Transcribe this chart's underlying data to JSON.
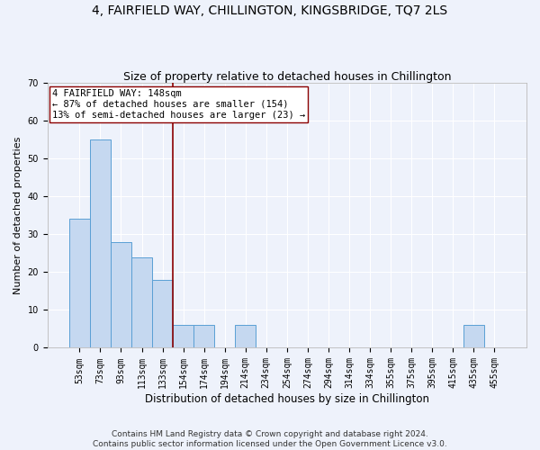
{
  "title1": "4, FAIRFIELD WAY, CHILLINGTON, KINGSBRIDGE, TQ7 2LS",
  "title2": "Size of property relative to detached houses in Chillington",
  "xlabel": "Distribution of detached houses by size in Chillington",
  "ylabel": "Number of detached properties",
  "bar_labels": [
    "53sqm",
    "73sqm",
    "93sqm",
    "113sqm",
    "133sqm",
    "154sqm",
    "174sqm",
    "194sqm",
    "214sqm",
    "234sqm",
    "254sqm",
    "274sqm",
    "294sqm",
    "314sqm",
    "334sqm",
    "355sqm",
    "375sqm",
    "395sqm",
    "415sqm",
    "435sqm",
    "455sqm"
  ],
  "bar_values": [
    34,
    55,
    28,
    24,
    18,
    6,
    6,
    0,
    6,
    0,
    0,
    0,
    0,
    0,
    0,
    0,
    0,
    0,
    0,
    6,
    0
  ],
  "bar_color": "#c5d8f0",
  "bar_edgecolor": "#5a9fd4",
  "vline_x": 4.5,
  "vline_color": "#8b0000",
  "annotation_line1": "4 FAIRFIELD WAY: 148sqm",
  "annotation_line2": "← 87% of detached houses are smaller (154)",
  "annotation_line3": "13% of semi-detached houses are larger (23) →",
  "annotation_box_color": "#ffffff",
  "annotation_box_edgecolor": "#8b0000",
  "ylim": [
    0,
    70
  ],
  "yticks": [
    0,
    10,
    20,
    30,
    40,
    50,
    60,
    70
  ],
  "footnote": "Contains HM Land Registry data © Crown copyright and database right 2024.\nContains public sector information licensed under the Open Government Licence v3.0.",
  "background_color": "#eef2fb",
  "grid_color": "#ffffff",
  "title1_fontsize": 10,
  "title2_fontsize": 9,
  "xlabel_fontsize": 8.5,
  "ylabel_fontsize": 8,
  "tick_fontsize": 7,
  "annotation_fontsize": 7.5,
  "footnote_fontsize": 6.5
}
